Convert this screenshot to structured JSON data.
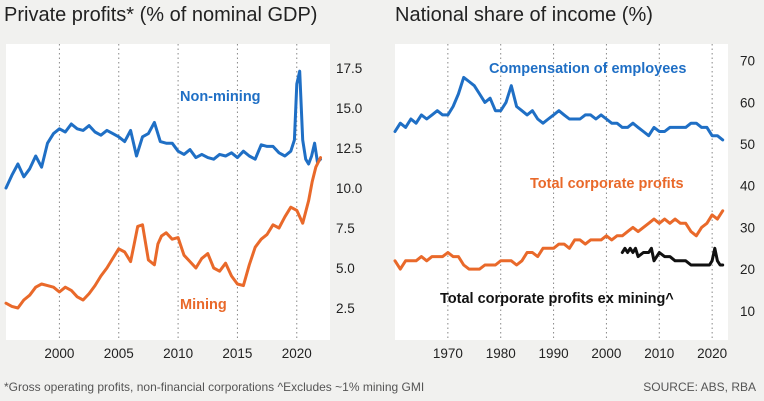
{
  "chart_data": [
    {
      "type": "line",
      "title": "Private profits* (% of nominal GDP)",
      "x_ticks": [
        2000,
        2005,
        2010,
        2015,
        2020
      ],
      "y_ticks": [
        2.5,
        5.0,
        7.5,
        10.0,
        12.5,
        15.0,
        17.5
      ],
      "y_tick_labels": [
        "2.5",
        "5.0",
        "7.5",
        "10.0",
        "12.5",
        "15.0",
        "17.5"
      ],
      "xlim": [
        1995.5,
        2022.8
      ],
      "ylim": [
        0.5,
        19.0
      ],
      "series": [
        {
          "name": "Non-mining",
          "color": "#1f6fc5",
          "x": [
            1995.5,
            1996,
            1996.5,
            1997,
            1997.5,
            1998,
            1998.5,
            1999,
            1999.5,
            2000,
            2000.5,
            2001,
            2001.5,
            2002,
            2002.5,
            2003,
            2003.5,
            2004,
            2004.5,
            2005,
            2005.5,
            2006,
            2006.5,
            2007,
            2007.5,
            2008,
            2008.5,
            2009,
            2009.5,
            2010,
            2010.5,
            2011,
            2011.5,
            2012,
            2012.5,
            2013,
            2013.5,
            2014,
            2014.5,
            2015,
            2015.5,
            2016,
            2016.5,
            2017,
            2017.5,
            2018,
            2018.5,
            2019,
            2019.5,
            2019.8,
            2020,
            2020.25,
            2020.5,
            2020.75,
            2021,
            2021.25,
            2021.5,
            2021.75,
            2022
          ],
          "values": [
            10.0,
            10.8,
            11.5,
            10.7,
            11.2,
            12.0,
            11.3,
            12.8,
            13.4,
            13.7,
            13.5,
            14.0,
            13.7,
            13.6,
            13.9,
            13.5,
            13.3,
            13.6,
            13.4,
            13.2,
            12.9,
            13.6,
            12.0,
            13.2,
            13.4,
            14.1,
            12.9,
            12.8,
            12.8,
            12.3,
            12.1,
            12.4,
            11.9,
            12.1,
            11.9,
            11.8,
            12.1,
            12.0,
            12.2,
            11.9,
            12.3,
            12.0,
            11.8,
            12.7,
            12.6,
            12.6,
            12.2,
            12.0,
            12.3,
            13.0,
            16.5,
            17.3,
            13.0,
            11.8,
            11.5,
            12.0,
            12.8,
            11.6,
            11.8
          ]
        },
        {
          "name": "Mining",
          "color": "#e9692a",
          "x": [
            1995.5,
            1996,
            1996.5,
            1997,
            1997.5,
            1998,
            1998.5,
            1999,
            1999.5,
            2000,
            2000.5,
            2001,
            2001.5,
            2002,
            2002.5,
            2003,
            2003.5,
            2004,
            2004.5,
            2005,
            2005.5,
            2006,
            2006.3,
            2006.6,
            2007,
            2007.5,
            2008,
            2008.3,
            2008.6,
            2009,
            2009.5,
            2010,
            2010.5,
            2011,
            2011.5,
            2012,
            2012.5,
            2013,
            2013.5,
            2014,
            2014.5,
            2015,
            2015.5,
            2016,
            2016.5,
            2017,
            2017.5,
            2018,
            2018.5,
            2019,
            2019.5,
            2020,
            2020.5,
            2021,
            2021.3,
            2021.6,
            2022
          ],
          "values": [
            2.8,
            2.6,
            2.5,
            3.0,
            3.3,
            3.8,
            4.0,
            3.9,
            3.8,
            3.5,
            3.8,
            3.6,
            3.2,
            3.0,
            3.4,
            3.9,
            4.5,
            5.0,
            5.6,
            6.2,
            6.0,
            5.4,
            6.5,
            7.6,
            7.7,
            5.5,
            5.2,
            6.5,
            7.0,
            7.2,
            6.8,
            6.9,
            5.8,
            5.4,
            5.0,
            5.6,
            5.9,
            5.0,
            4.8,
            5.3,
            4.5,
            4.0,
            3.9,
            5.2,
            6.3,
            6.8,
            7.1,
            7.7,
            7.5,
            8.2,
            8.8,
            8.6,
            7.8,
            9.2,
            10.4,
            11.3,
            11.9
          ]
        }
      ],
      "annotations": [
        "Non-mining",
        "Mining"
      ]
    },
    {
      "type": "line",
      "title": "National share of income (%)",
      "x_ticks": [
        1970,
        1980,
        1990,
        2000,
        2010,
        2020
      ],
      "y_ticks": [
        10,
        20,
        30,
        40,
        50,
        60,
        70
      ],
      "xlim": [
        1960,
        2023
      ],
      "ylim": [
        3,
        74
      ],
      "series": [
        {
          "name": "Compensation of employees",
          "color": "#1f6fc5",
          "x": [
            1960,
            1961,
            1962,
            1963,
            1964,
            1965,
            1966,
            1967,
            1968,
            1969,
            1970,
            1971,
            1972,
            1973,
            1974,
            1975,
            1976,
            1977,
            1978,
            1979,
            1980,
            1981,
            1982,
            1983,
            1984,
            1985,
            1986,
            1987,
            1988,
            1989,
            1990,
            1991,
            1992,
            1993,
            1994,
            1995,
            1996,
            1997,
            1998,
            1999,
            2000,
            2001,
            2002,
            2003,
            2004,
            2005,
            2006,
            2007,
            2008,
            2009,
            2010,
            2011,
            2012,
            2013,
            2014,
            2015,
            2016,
            2017,
            2018,
            2019,
            2020,
            2021,
            2022
          ],
          "values": [
            53,
            55,
            54,
            56,
            55,
            57,
            56,
            57,
            58,
            57,
            57,
            59,
            62,
            66,
            65,
            64,
            62,
            60,
            61,
            58,
            58,
            60,
            64,
            59,
            58,
            57,
            58,
            56,
            55,
            56,
            57,
            58,
            57,
            56,
            56,
            56,
            57,
            57,
            56,
            57,
            56,
            55,
            55,
            54,
            54,
            55,
            54,
            53,
            52,
            54,
            53,
            53,
            54,
            54,
            54,
            54,
            55,
            55,
            54,
            54,
            52,
            52,
            51
          ]
        },
        {
          "name": "Total corporate profits",
          "color": "#e9692a",
          "x": [
            1960,
            1961,
            1962,
            1963,
            1964,
            1965,
            1966,
            1967,
            1968,
            1969,
            1970,
            1971,
            1972,
            1973,
            1974,
            1975,
            1976,
            1977,
            1978,
            1979,
            1980,
            1981,
            1982,
            1983,
            1984,
            1985,
            1986,
            1987,
            1988,
            1989,
            1990,
            1991,
            1992,
            1993,
            1994,
            1995,
            1996,
            1997,
            1998,
            1999,
            2000,
            2001,
            2002,
            2003,
            2004,
            2005,
            2006,
            2007,
            2008,
            2009,
            2010,
            2011,
            2012,
            2013,
            2014,
            2015,
            2016,
            2017,
            2018,
            2019,
            2020,
            2021,
            2022
          ],
          "values": [
            22,
            20,
            22,
            22,
            22,
            23,
            22,
            23,
            23,
            23,
            24,
            23,
            23,
            21,
            20,
            20,
            20,
            21,
            21,
            21,
            22,
            22,
            22,
            21,
            22,
            24,
            24,
            23,
            25,
            25,
            25,
            26,
            26,
            25,
            27,
            27,
            26,
            27,
            27,
            27,
            28,
            27,
            28,
            28,
            29,
            30,
            29,
            30,
            31,
            32,
            31,
            32,
            31,
            32,
            31,
            31,
            29,
            28,
            30,
            31,
            33,
            32,
            34
          ]
        },
        {
          "name": "Total corporate profits ex mining^",
          "color": "#111111",
          "x": [
            2003,
            2003.5,
            2004,
            2004.5,
            2005,
            2005.5,
            2006,
            2007,
            2008,
            2008.5,
            2009,
            2010,
            2011,
            2012,
            2013,
            2014,
            2015,
            2016,
            2017,
            2018,
            2019,
            2019.5,
            2020,
            2020.5,
            2021,
            2021.5,
            2022
          ],
          "values": [
            24,
            25,
            24,
            25,
            24,
            25,
            23,
            24,
            24,
            25,
            22,
            24,
            23,
            23,
            22,
            22,
            22,
            21,
            21,
            21,
            21,
            21,
            22,
            25,
            22,
            21,
            21
          ]
        }
      ],
      "annotations": [
        "Compensation of employees",
        "Total corporate profits",
        "Total corporate profits ex mining^"
      ]
    }
  ],
  "footnote": "*Gross operating profits, non-financial corporations   ^Excludes ~1% mining GMI",
  "source": "SOURCE: ABS, RBA"
}
